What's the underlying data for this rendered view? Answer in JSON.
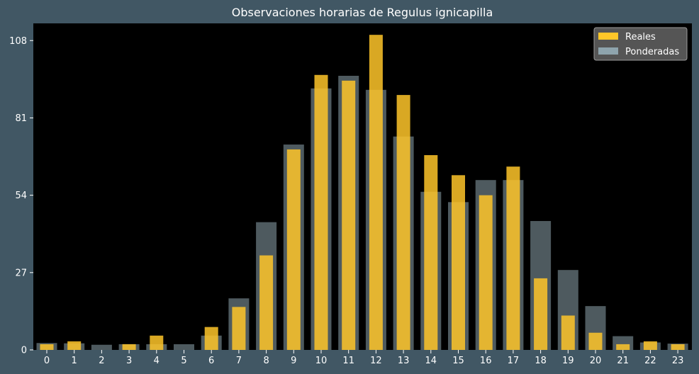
{
  "chart_data": {
    "type": "bar",
    "title": "Observaciones horarias de Regulus ignicapilla",
    "xlabel": "",
    "ylabel": "",
    "categories": [
      "0",
      "1",
      "2",
      "3",
      "4",
      "5",
      "6",
      "7",
      "8",
      "9",
      "10",
      "11",
      "12",
      "13",
      "14",
      "15",
      "16",
      "17",
      "18",
      "19",
      "20",
      "21",
      "22",
      "23"
    ],
    "series": [
      {
        "name": "Reales",
        "color": "#ffc629",
        "values": [
          2,
          3,
          0,
          2,
          5,
          0,
          8,
          15,
          33,
          70,
          96,
          94,
          110,
          89,
          68,
          61,
          54,
          64,
          25,
          12,
          6,
          2,
          3,
          2
        ]
      },
      {
        "name": "Ponderadas",
        "color": "#8ea4ad",
        "values": [
          2.4,
          2.3,
          1.8,
          2.0,
          2.0,
          2.0,
          5.0,
          18.0,
          44.6,
          71.7,
          91.3,
          95.7,
          90.8,
          74.5,
          55.2,
          51.6,
          59.3,
          59.3,
          45.0,
          27.9,
          15.3,
          4.8,
          2.6,
          2.2
        ]
      }
    ],
    "yticks": [
      0,
      27,
      54,
      81,
      108
    ],
    "ylim": [
      0,
      114
    ],
    "grid": false,
    "legend": "top-right",
    "plot_background": "#000000",
    "figure_background": "#415764"
  }
}
